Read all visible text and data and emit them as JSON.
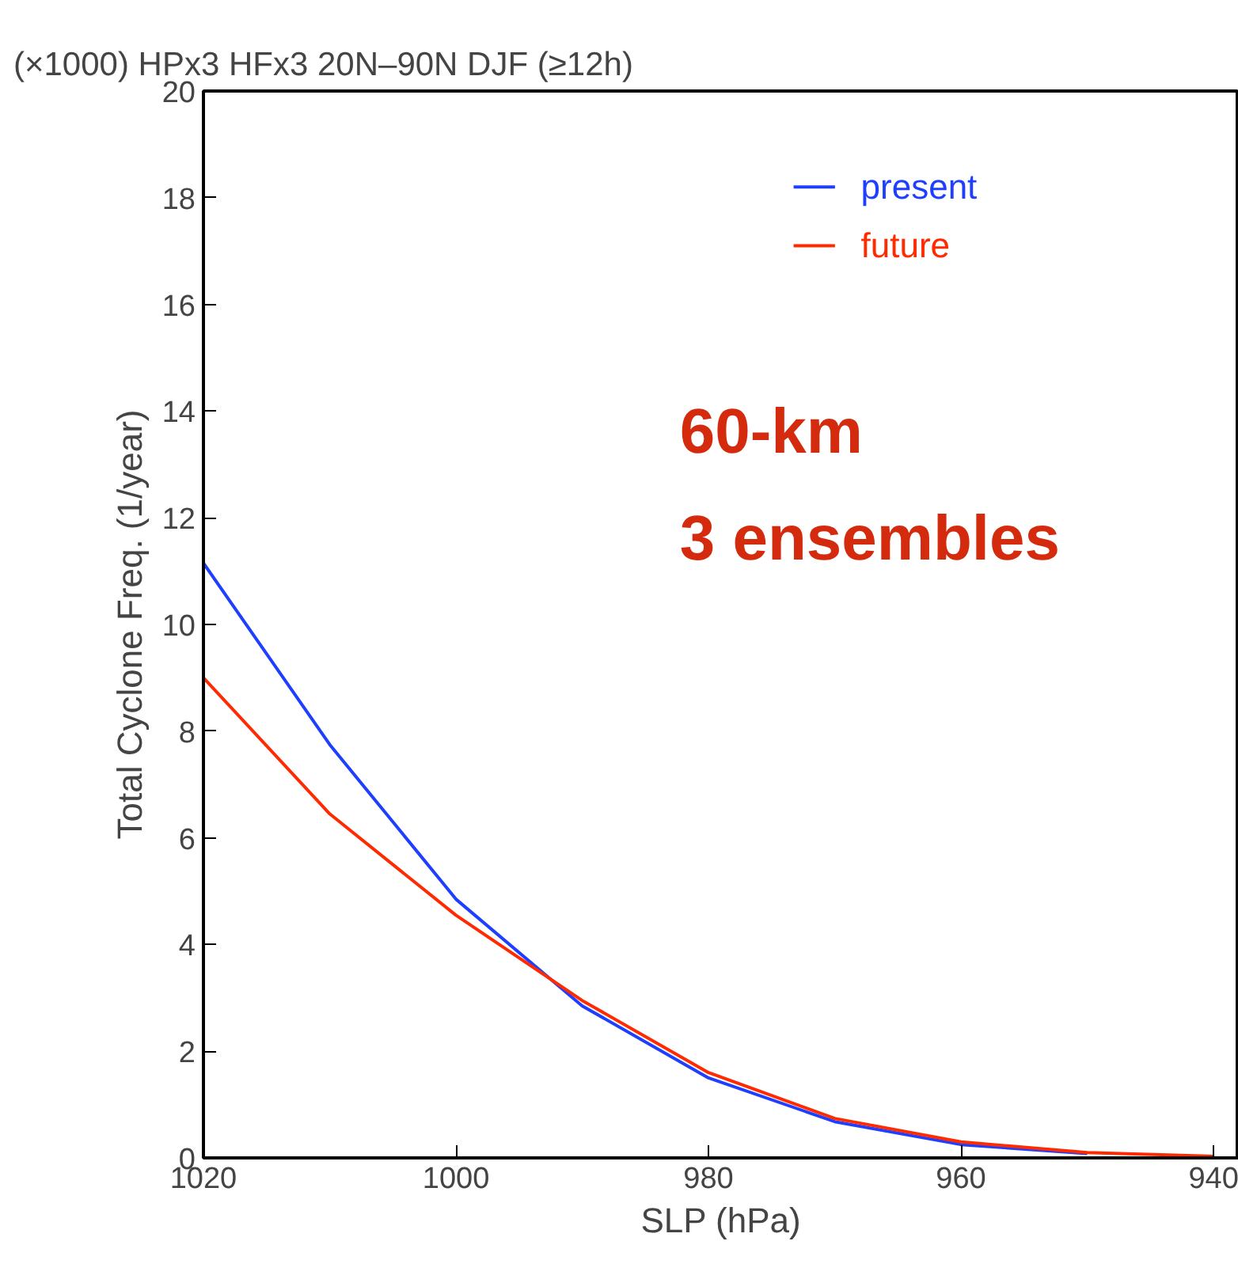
{
  "chart_data": {
    "type": "line",
    "title": "(×1000)   HPx3 HFx3   20N–90N DJF (≥12h)",
    "xlabel": "SLP (hPa)",
    "ylabel": "Total Cyclone Freq. (1/year)",
    "x": [
      1020,
      1010,
      1000,
      990,
      980,
      970,
      960,
      950,
      940
    ],
    "series": [
      {
        "name": "present",
        "color": "#1f3fff",
        "values": [
          11.15,
          7.75,
          4.85,
          2.85,
          1.5,
          0.68,
          0.25,
          0.08,
          null
        ]
      },
      {
        "name": "future",
        "color": "#ff2a00",
        "values": [
          9.0,
          6.45,
          4.55,
          2.95,
          1.6,
          0.74,
          0.3,
          0.1,
          0.03
        ]
      }
    ],
    "xlim": [
      1020,
      938
    ],
    "ylim": [
      0,
      20
    ],
    "xticks": [
      1020,
      1000,
      980,
      960,
      940
    ],
    "yticks": [
      0,
      2,
      4,
      6,
      8,
      10,
      12,
      14,
      16,
      18,
      20
    ],
    "grid": false,
    "legend": "top right",
    "line_style": "solid",
    "annotations": [
      "60-km",
      "3 ensembles"
    ]
  }
}
